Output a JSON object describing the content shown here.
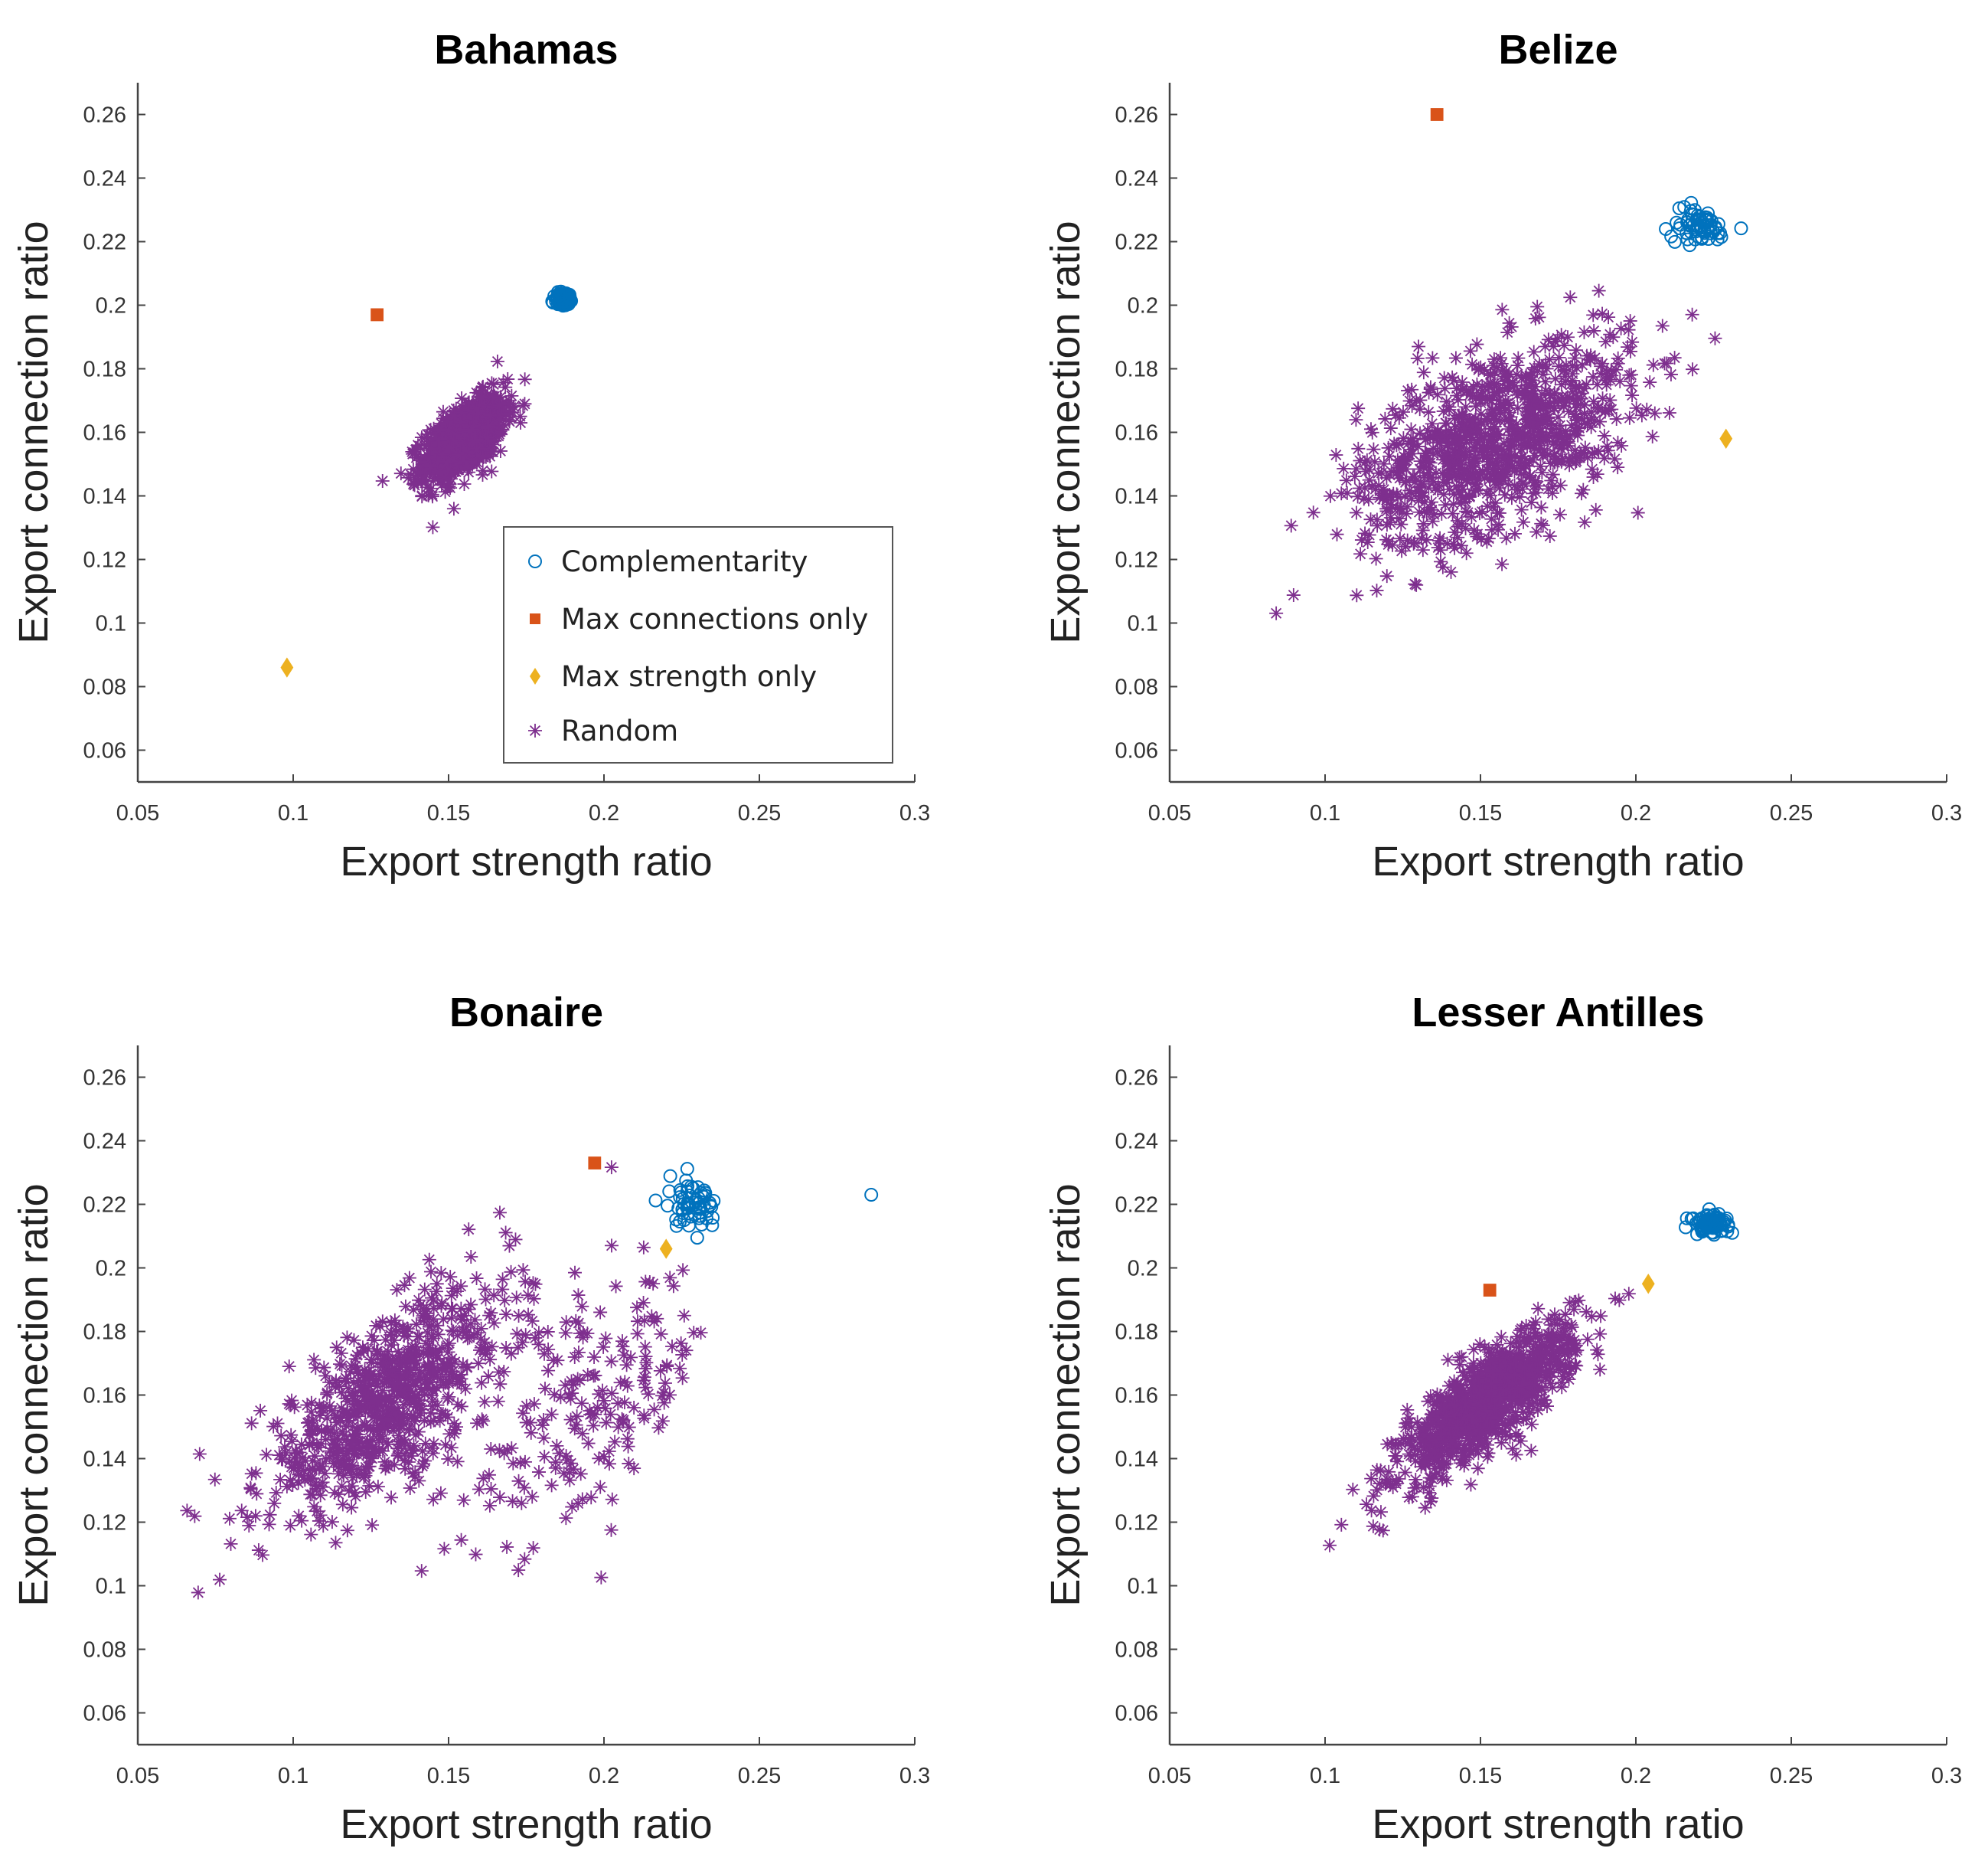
{
  "chart_data": [
    {
      "type": "scatter",
      "title": "Bahamas",
      "xlabel": "Export strength ratio",
      "ylabel": "Export connection ratio",
      "xlim": [
        0.05,
        0.3
      ],
      "ylim": [
        0.05,
        0.27
      ],
      "xticks": [
        "0.05",
        "0.1",
        "0.15",
        "0.2",
        "0.25",
        "0.3"
      ],
      "yticks": [
        "0.06",
        "0.08",
        "0.1",
        "0.12",
        "0.14",
        "0.16",
        "0.18",
        "0.2",
        "0.22",
        "0.24",
        "0.26"
      ],
      "legend": {
        "placement": "bottom-right",
        "entries": [
          "Complementarity",
          "Max connections only",
          "Max strength only",
          "Random"
        ]
      },
      "series": [
        {
          "name": "Complementarity",
          "marker": "circle",
          "color": "#0072BD",
          "clusters": [
            {
              "center": [
                0.187,
                0.202
              ],
              "sd": [
                0.0015,
                0.0012
              ],
              "corr": 0.2,
              "count": 80
            }
          ]
        },
        {
          "name": "Max connections only",
          "marker": "square",
          "color": "#D95319",
          "points": [
            [
              0.127,
              0.197
            ]
          ]
        },
        {
          "name": "Max strength only",
          "marker": "diamond",
          "color": "#EDB120",
          "points": [
            [
              0.098,
              0.086
            ]
          ]
        },
        {
          "name": "Random",
          "marker": "asterisk",
          "color": "#7E2F8E",
          "clusters": [
            {
              "center": [
                0.155,
                0.158
              ],
              "sd": [
                0.0065,
                0.0065
              ],
              "corr": 0.6,
              "count": 1000
            }
          ]
        }
      ]
    },
    {
      "type": "scatter",
      "title": "Belize",
      "xlabel": "Export strength ratio",
      "ylabel": "Export connection ratio",
      "xlim": [
        0.05,
        0.3
      ],
      "ylim": [
        0.05,
        0.27
      ],
      "xticks": [
        "0.05",
        "0.1",
        "0.15",
        "0.2",
        "0.25",
        "0.3"
      ],
      "yticks": [
        "0.06",
        "0.08",
        "0.1",
        "0.12",
        "0.14",
        "0.16",
        "0.18",
        "0.2",
        "0.22",
        "0.24",
        "0.26"
      ],
      "series": [
        {
          "name": "Complementarity",
          "marker": "circle",
          "color": "#0072BD",
          "clusters": [
            {
              "center": [
                0.22,
                0.225
              ],
              "sd": [
                0.005,
                0.003
              ],
              "corr": -0.3,
              "count": 60
            }
          ]
        },
        {
          "name": "Max connections only",
          "marker": "square",
          "color": "#D95319",
          "points": [
            [
              0.136,
              0.26
            ]
          ]
        },
        {
          "name": "Max strength only",
          "marker": "diamond",
          "color": "#EDB120",
          "points": [
            [
              0.229,
              0.158
            ]
          ]
        },
        {
          "name": "Random",
          "marker": "asterisk",
          "color": "#7E2F8E",
          "clusters": [
            {
              "center": [
                0.155,
                0.158
              ],
              "sd": [
                0.022,
                0.016
              ],
              "corr": 0.5,
              "count": 1000
            }
          ]
        }
      ]
    },
    {
      "type": "scatter",
      "title": "Bonaire",
      "xlabel": "Export strength ratio",
      "ylabel": "Export connection ratio",
      "xlim": [
        0.05,
        0.3
      ],
      "ylim": [
        0.05,
        0.27
      ],
      "xticks": [
        "0.05",
        "0.1",
        "0.15",
        "0.2",
        "0.25",
        "0.3"
      ],
      "yticks": [
        "0.06",
        "0.08",
        "0.1",
        "0.12",
        "0.14",
        "0.16",
        "0.18",
        "0.2",
        "0.22",
        "0.24",
        "0.26"
      ],
      "series": [
        {
          "name": "Complementarity",
          "marker": "circle",
          "color": "#0072BD",
          "clusters": [
            {
              "center": [
                0.228,
                0.22
              ],
              "sd": [
                0.005,
                0.004
              ],
              "corr": -0.2,
              "count": 60
            }
          ],
          "points": [
            [
              0.286,
              0.223
            ]
          ]
        },
        {
          "name": "Max connections only",
          "marker": "square",
          "color": "#D95319",
          "points": [
            [
              0.197,
              0.233
            ]
          ]
        },
        {
          "name": "Max strength only",
          "marker": "diamond",
          "color": "#EDB120",
          "points": [
            [
              0.22,
              0.206
            ]
          ]
        },
        {
          "name": "Random",
          "marker": "asterisk",
          "color": "#7E2F8E",
          "clusters": [
            {
              "center": [
                0.13,
                0.158
              ],
              "sd": [
                0.02,
                0.018
              ],
              "corr": 0.7,
              "count": 800
            },
            {
              "center": [
                0.195,
                0.155
              ],
              "sd": [
                0.02,
                0.02
              ],
              "corr": 0.6,
              "count": 200
            }
          ]
        }
      ]
    },
    {
      "type": "scatter",
      "title": "Lesser Antilles",
      "xlabel": "Export strength ratio",
      "ylabel": "Export connection ratio",
      "xlim": [
        0.05,
        0.3
      ],
      "ylim": [
        0.05,
        0.27
      ],
      "xticks": [
        "0.05",
        "0.1",
        "0.15",
        "0.2",
        "0.25",
        "0.3"
      ],
      "yticks": [
        "0.06",
        "0.08",
        "0.1",
        "0.12",
        "0.14",
        "0.16",
        "0.18",
        "0.2",
        "0.22",
        "0.24",
        "0.26"
      ],
      "series": [
        {
          "name": "Complementarity",
          "marker": "circle",
          "color": "#0072BD",
          "clusters": [
            {
              "center": [
                0.224,
                0.214
              ],
              "sd": [
                0.003,
                0.0015
              ],
              "corr": 0.2,
              "count": 80
            }
          ]
        },
        {
          "name": "Max connections only",
          "marker": "square",
          "color": "#D95319",
          "points": [
            [
              0.153,
              0.193
            ]
          ]
        },
        {
          "name": "Max strength only",
          "marker": "diamond",
          "color": "#EDB120",
          "points": [
            [
              0.204,
              0.195
            ]
          ]
        },
        {
          "name": "Random",
          "marker": "asterisk",
          "color": "#7E2F8E",
          "clusters": [
            {
              "center": [
                0.152,
                0.158
              ],
              "sd": [
                0.014,
                0.012
              ],
              "corr": 0.8,
              "count": 1000
            }
          ]
        }
      ]
    }
  ]
}
